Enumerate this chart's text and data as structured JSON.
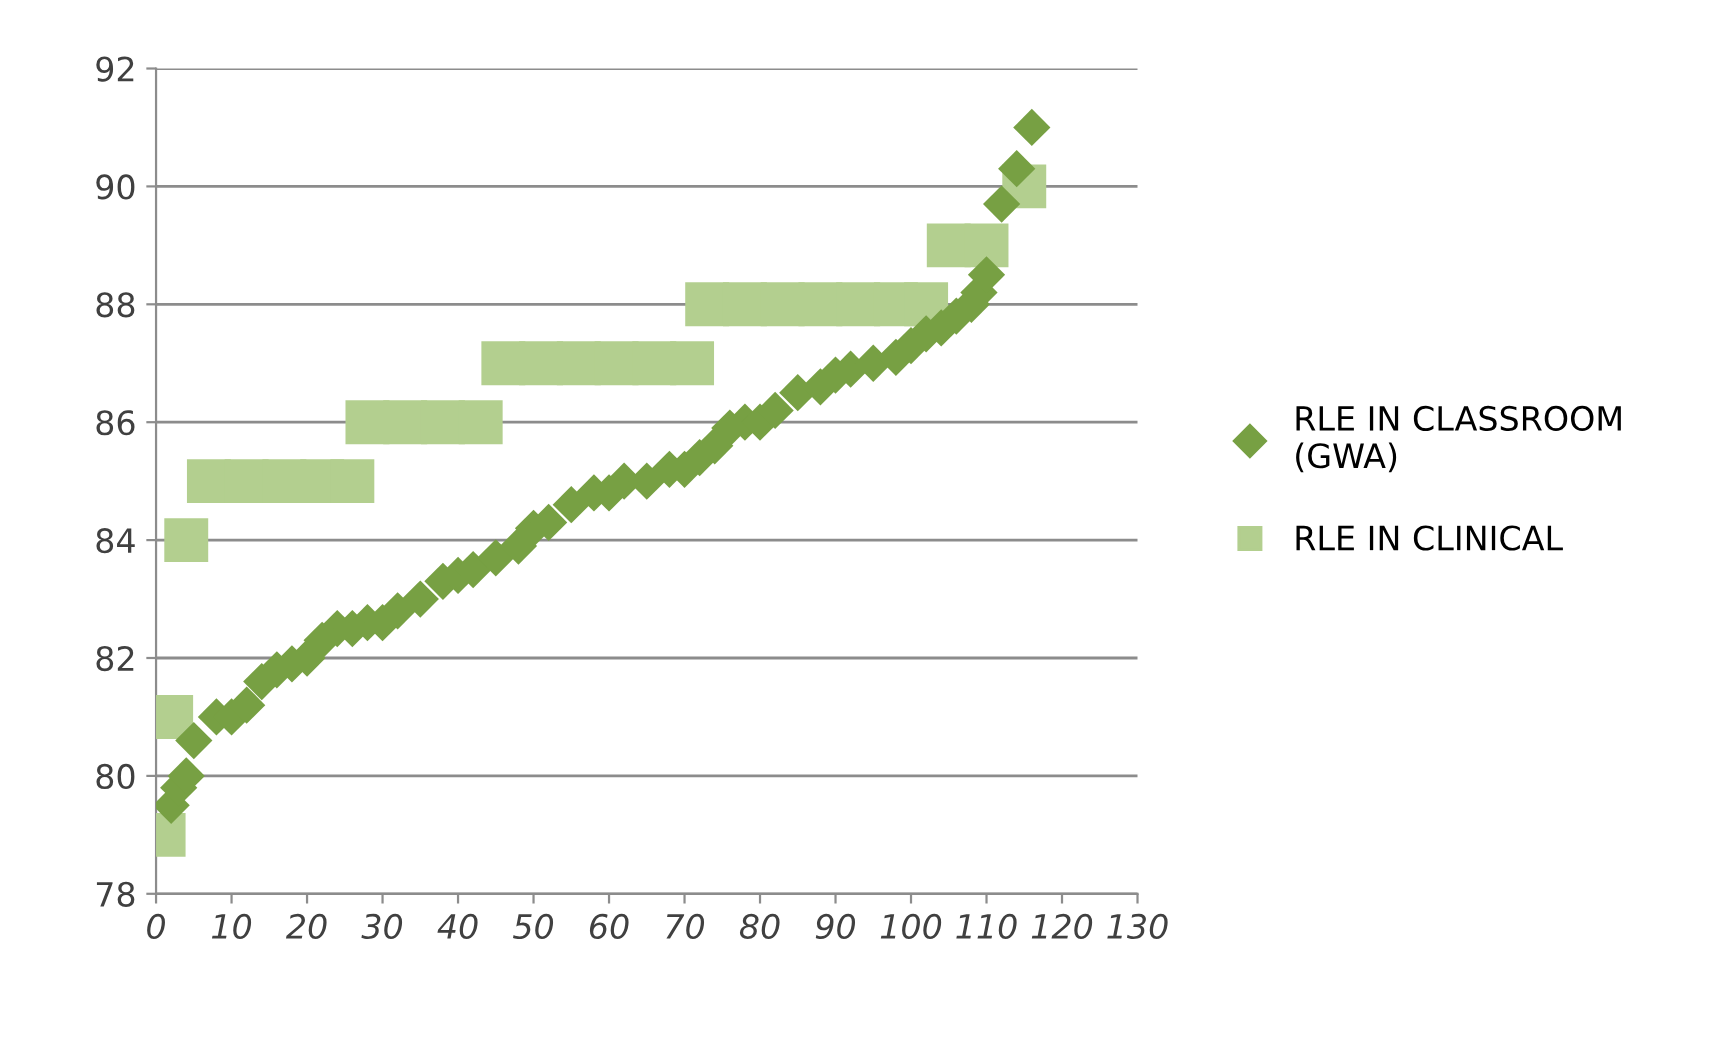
{
  "chart_data": {
    "type": "scatter",
    "xlim": [
      0,
      130
    ],
    "ylim": [
      78,
      92
    ],
    "xticks": [
      0,
      10,
      20,
      30,
      40,
      50,
      60,
      70,
      80,
      90,
      100,
      110,
      120,
      130
    ],
    "yticks": [
      78,
      80,
      82,
      84,
      86,
      88,
      90,
      92
    ],
    "grid": "y",
    "legend": "right",
    "series": [
      {
        "name": "RLE IN CLASSROOM (GWA)",
        "color": "#77a043",
        "marker": "diamond",
        "x": [
          2,
          3,
          4,
          5,
          8,
          10,
          12,
          14,
          16,
          18,
          20,
          22,
          24,
          26,
          28,
          30,
          32,
          35,
          38,
          40,
          42,
          45,
          48,
          50,
          52,
          55,
          58,
          60,
          62,
          65,
          68,
          70,
          72,
          74,
          76,
          78,
          80,
          82,
          85,
          88,
          90,
          92,
          95,
          98,
          100,
          102,
          104,
          106,
          108,
          109,
          110,
          112,
          114,
          116
        ],
        "values": [
          79.5,
          79.8,
          80.0,
          80.6,
          81.0,
          81.0,
          81.2,
          81.6,
          81.8,
          81.9,
          82.0,
          82.3,
          82.5,
          82.5,
          82.6,
          82.6,
          82.8,
          83.0,
          83.3,
          83.4,
          83.5,
          83.7,
          83.9,
          84.2,
          84.3,
          84.6,
          84.8,
          84.8,
          85.0,
          85.0,
          85.2,
          85.2,
          85.4,
          85.6,
          85.9,
          86.0,
          86.0,
          86.2,
          86.5,
          86.6,
          86.8,
          86.9,
          87.0,
          87.1,
          87.3,
          87.5,
          87.6,
          87.8,
          88.0,
          88.2,
          88.5,
          89.7,
          90.3,
          91.0
        ]
      },
      {
        "name": "RLE IN CLINICAL",
        "color": "#b3cf8f",
        "marker": "square",
        "x": [
          1,
          2,
          4,
          7,
          12,
          17,
          22,
          26,
          28,
          33,
          38,
          43,
          46,
          51,
          56,
          61,
          66,
          71,
          73,
          78,
          83,
          88,
          93,
          98,
          102,
          105,
          110,
          115
        ],
        "values": [
          79,
          81,
          84,
          85,
          85,
          85,
          85,
          85,
          86,
          86,
          86,
          86,
          87,
          87,
          87,
          87,
          87,
          87,
          88,
          88,
          88,
          88,
          88,
          88,
          88,
          89,
          89,
          90
        ]
      }
    ]
  }
}
